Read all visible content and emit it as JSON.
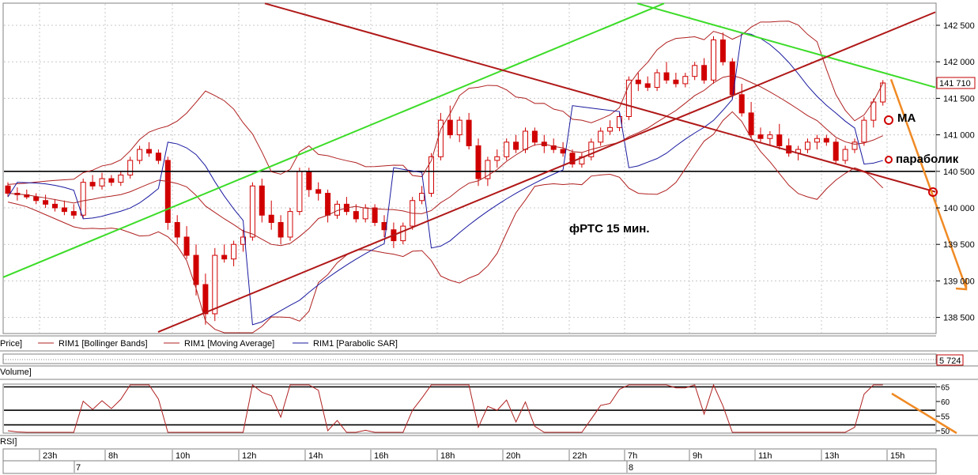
{
  "colors": {
    "candle_bull": "#d00000",
    "candle_bear": "#d00000",
    "bollinger": "#b02020",
    "moving_average": "#b02020",
    "parabolic_sar": "#1a1aa0",
    "channel_green": "#3cdc28",
    "channel_red": "#b01818",
    "forecast": "#f08a24",
    "grid": "#c8c8c8"
  },
  "annotations": {
    "instrument": "фРТС   15 мин.",
    "ma_label": "МА",
    "sar_label": "параболик"
  },
  "legend": {
    "price": "Price]",
    "bollinger": "RIM1 [Bollinger Bands]",
    "ma": "RIM1 [Moving Average]",
    "sar": "RIM1 [Parabolic SAR]"
  },
  "panels": {
    "volume_label": "Volume]",
    "volume_value": "5 724",
    "rsi_label": "RSI]"
  },
  "chart_data": [
    {
      "type": "candlestick",
      "panel": "price",
      "y_ticks": [
        "142 500",
        "142 000",
        "141 500",
        "141 000",
        "140 500",
        "140 000",
        "139 500",
        "139 000",
        "138 500"
      ],
      "ylim": [
        138300,
        142800
      ],
      "last_price": "141 710",
      "horizontal_level": 140500,
      "ohlc": [
        [
          140300,
          140350,
          140150,
          140200
        ],
        [
          140200,
          140280,
          140100,
          140180
        ],
        [
          140180,
          140250,
          140120,
          140150
        ],
        [
          140150,
          140200,
          140050,
          140100
        ],
        [
          140100,
          140180,
          140000,
          140050
        ],
        [
          140050,
          140120,
          139950,
          140000
        ],
        [
          140000,
          140100,
          139900,
          139950
        ],
        [
          139950,
          140050,
          139850,
          139900
        ],
        [
          139900,
          140400,
          139850,
          140350
        ],
        [
          140350,
          140450,
          140250,
          140300
        ],
        [
          140300,
          140480,
          140250,
          140400
        ],
        [
          140400,
          140450,
          140300,
          140350
        ],
        [
          140350,
          140500,
          140300,
          140450
        ],
        [
          140450,
          140700,
          140400,
          140650
        ],
        [
          140650,
          140850,
          140600,
          140800
        ],
        [
          140800,
          140900,
          140700,
          140750
        ],
        [
          140750,
          140800,
          140600,
          140650
        ],
        [
          140650,
          140700,
          139700,
          139800
        ],
        [
          139800,
          139900,
          139500,
          139600
        ],
        [
          139600,
          139750,
          139300,
          139350
        ],
        [
          139350,
          139500,
          138800,
          138950
        ],
        [
          138950,
          139100,
          138400,
          138550
        ],
        [
          138550,
          139450,
          138450,
          139350
        ],
        [
          139350,
          139500,
          139250,
          139300
        ],
        [
          139300,
          139550,
          139200,
          139500
        ],
        [
          139500,
          139700,
          139400,
          139600
        ],
        [
          139600,
          140350,
          139550,
          140300
        ],
        [
          140300,
          140400,
          139800,
          139900
        ],
        [
          139900,
          140100,
          139700,
          139800
        ],
        [
          139800,
          139900,
          139500,
          139600
        ],
        [
          139600,
          140000,
          139550,
          139950
        ],
        [
          139950,
          140550,
          139900,
          140500
        ],
        [
          140500,
          140550,
          140150,
          140250
        ],
        [
          140250,
          140350,
          140100,
          140200
        ],
        [
          140200,
          140250,
          139800,
          139900
        ],
        [
          139900,
          140100,
          139850,
          140050
        ],
        [
          140050,
          140150,
          139900,
          139950
        ],
        [
          139950,
          140050,
          139800,
          139850
        ],
        [
          139850,
          140050,
          139800,
          140000
        ],
        [
          140000,
          140050,
          139750,
          139800
        ],
        [
          139800,
          139900,
          139600,
          139700
        ],
        [
          139700,
          139800,
          139450,
          139550
        ],
        [
          139550,
          139800,
          139500,
          139750
        ],
        [
          139750,
          140150,
          139700,
          140100
        ],
        [
          140100,
          140300,
          140050,
          140200
        ],
        [
          140200,
          140750,
          140150,
          140700
        ],
        [
          140700,
          141300,
          140650,
          141200
        ],
        [
          141200,
          141400,
          140950,
          141000
        ],
        [
          141000,
          141250,
          140900,
          141200
        ],
        [
          141200,
          141300,
          140800,
          140850
        ],
        [
          140850,
          140950,
          140300,
          140400
        ],
        [
          140400,
          140700,
          140300,
          140650
        ],
        [
          140650,
          140800,
          140550,
          140700
        ],
        [
          140700,
          140950,
          140650,
          140900
        ],
        [
          140900,
          141000,
          140750,
          140800
        ],
        [
          140800,
          141100,
          140750,
          141050
        ],
        [
          141050,
          141100,
          140850,
          140900
        ],
        [
          140900,
          141000,
          140750,
          140850
        ],
        [
          140850,
          140950,
          140750,
          140800
        ],
        [
          140800,
          140900,
          140700,
          140750
        ],
        [
          140750,
          140800,
          140550,
          140600
        ],
        [
          140600,
          140750,
          140550,
          140700
        ],
        [
          140700,
          140950,
          140650,
          140900
        ],
        [
          140900,
          141100,
          140850,
          141050
        ],
        [
          141050,
          141200,
          141000,
          141100
        ],
        [
          141100,
          141300,
          141050,
          141250
        ],
        [
          141250,
          141800,
          141200,
          141750
        ],
        [
          141750,
          141850,
          141600,
          141700
        ],
        [
          141700,
          141800,
          141600,
          141650
        ],
        [
          141650,
          141900,
          141600,
          141850
        ],
        [
          141850,
          142000,
          141700,
          141750
        ],
        [
          141750,
          141850,
          141650,
          141700
        ],
        [
          141700,
          141850,
          141650,
          141800
        ],
        [
          141800,
          142000,
          141750,
          141950
        ],
        [
          141950,
          142050,
          141700,
          141750
        ],
        [
          141750,
          142350,
          141700,
          142300
        ],
        [
          142300,
          142400,
          141950,
          142000
        ],
        [
          142000,
          142050,
          141500,
          141550
        ],
        [
          141550,
          141700,
          141250,
          141300
        ],
        [
          141300,
          141450,
          140950,
          141000
        ],
        [
          141000,
          141100,
          140900,
          140950
        ],
        [
          140950,
          141050,
          140850,
          141000
        ],
        [
          141000,
          141150,
          140800,
          140850
        ],
        [
          140850,
          140950,
          140700,
          140750
        ],
        [
          140750,
          140850,
          140650,
          140800
        ],
        [
          140800,
          140950,
          140750,
          140900
        ],
        [
          140900,
          141000,
          140800,
          140950
        ],
        [
          140950,
          141000,
          140850,
          140900
        ],
        [
          140900,
          140950,
          140600,
          140650
        ],
        [
          140650,
          140850,
          140600,
          140800
        ],
        [
          140800,
          140950,
          140750,
          140900
        ],
        [
          140900,
          141250,
          140850,
          141200
        ],
        [
          141200,
          141500,
          141100,
          141450
        ],
        [
          141450,
          141750,
          141400,
          141710
        ]
      ],
      "x_ticks": [
        "23h",
        "8h",
        "10h",
        "12h",
        "14h",
        "16h",
        "18h",
        "20h",
        "22h",
        "7h",
        "9h",
        "11h",
        "13h",
        "15h"
      ],
      "date_ticks": [
        "7",
        "8"
      ]
    },
    {
      "type": "line",
      "panel": "rsi",
      "y_ticks": [
        "65",
        "60",
        "55",
        "50"
      ],
      "ylim": [
        49,
        66
      ],
      "levels": [
        65,
        57,
        52
      ]
    }
  ]
}
